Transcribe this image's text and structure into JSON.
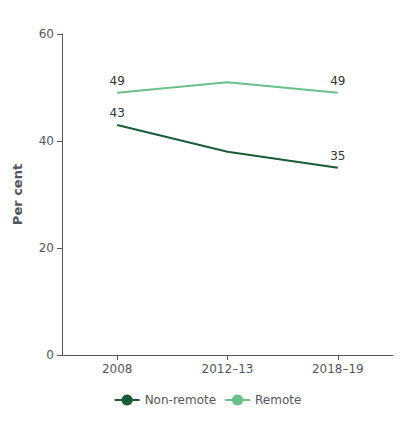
{
  "chart_data": {
    "type": "line",
    "categories": [
      "2008",
      "2012–13",
      "2018–19"
    ],
    "series": [
      {
        "name": "Non-remote",
        "color": "#1a5c38",
        "values": [
          43,
          38,
          35
        ]
      },
      {
        "name": "Remote",
        "color": "#6abf8a",
        "values": [
          49,
          51,
          49
        ]
      }
    ],
    "ylabel": "Per cent",
    "ylim": [
      0,
      60
    ],
    "yticks": [
      0,
      20,
      40,
      60
    ],
    "grid": false,
    "legend": "bottom",
    "annotations": [
      {
        "series": "Non-remote",
        "x": "2008",
        "y": 43,
        "text": "43"
      },
      {
        "series": "Non-remote",
        "x": "2018–19",
        "y": 35,
        "text": "35"
      },
      {
        "series": "Remote",
        "x": "2008",
        "y": 49,
        "text": "49"
      },
      {
        "series": "Remote",
        "x": "2018–19",
        "y": 49,
        "text": "49"
      }
    ]
  }
}
